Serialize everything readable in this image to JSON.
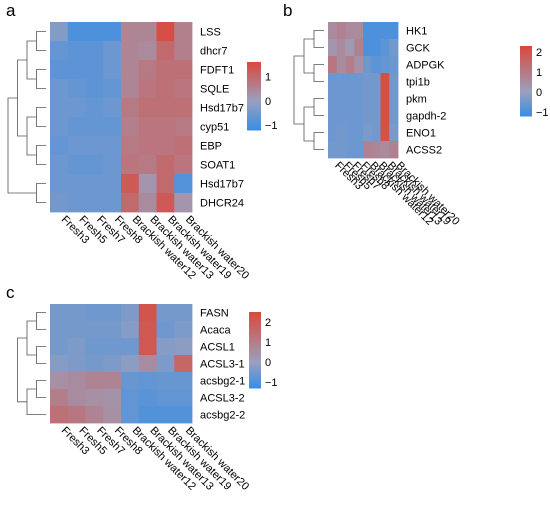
{
  "chart_data": [
    {
      "type": "heatmap",
      "panel_label": "a",
      "rows": [
        "LSS",
        "dhcr7",
        "FDFT1",
        "SQLE",
        "Hsd17b7",
        "cyp51",
        "EBP",
        "SOAT1",
        "Hsd17b7",
        "DHCR24"
      ],
      "columns": [
        "Fresh3",
        "Fresh5",
        "Fresh7",
        "Fresh8",
        "Brackish water12",
        "Brackish water13",
        "Brackish water19",
        "Brackish water20"
      ],
      "values": [
        [
          -0.3,
          -1.0,
          -1.0,
          -1.0,
          0.5,
          0.5,
          1.5,
          0.6
        ],
        [
          -0.7,
          -0.8,
          -0.8,
          -0.6,
          0.5,
          0.4,
          1.0,
          0.6
        ],
        [
          -0.8,
          -0.8,
          -0.8,
          -0.6,
          0.5,
          0.7,
          0.9,
          0.9
        ],
        [
          -0.6,
          -0.7,
          -0.8,
          -0.7,
          0.5,
          0.8,
          0.9,
          0.8
        ],
        [
          -0.6,
          -0.6,
          -0.7,
          -0.6,
          0.7,
          0.9,
          0.9,
          0.9
        ],
        [
          -0.6,
          -0.7,
          -0.7,
          -0.7,
          0.6,
          0.8,
          0.8,
          0.7
        ],
        [
          -0.7,
          -0.6,
          -0.6,
          -0.6,
          0.7,
          0.8,
          0.8,
          0.9
        ],
        [
          -0.6,
          -0.7,
          -0.7,
          -0.6,
          0.8,
          0.7,
          1.0,
          0.8
        ],
        [
          -0.6,
          -0.6,
          -0.6,
          -0.6,
          1.3,
          0.2,
          1.0,
          -0.9
        ],
        [
          -0.5,
          -0.6,
          -0.6,
          -0.6,
          1.0,
          0.4,
          1.3,
          0.2
        ]
      ],
      "colorbar": {
        "ticks": [
          1,
          0,
          -1
        ],
        "min": -1.2,
        "max": 1.6
      }
    },
    {
      "type": "heatmap",
      "panel_label": "b",
      "rows": [
        "HK1",
        "GCK",
        "ADPGK",
        "tpi1b",
        "pkm",
        "gapdh-2",
        "ENO1",
        "ACSS2"
      ],
      "columns": [
        "Fresh3",
        "Fresh5",
        "Fresh7",
        "Fresh8",
        "Brackish water12",
        "Brackish water13",
        "Brackish water19",
        "Brackish water20"
      ],
      "values": [
        [
          0.6,
          0.8,
          0.6,
          0.6,
          -1.0,
          -1.0,
          -1.0,
          -1.0
        ],
        [
          0.3,
          0.6,
          0.2,
          0.8,
          -1.0,
          -1.0,
          -0.8,
          -0.5
        ],
        [
          1.1,
          0.5,
          0.9,
          0.4,
          -0.6,
          -0.8,
          -0.7,
          -0.6
        ],
        [
          -0.6,
          -0.6,
          -0.6,
          -0.6,
          -0.5,
          -0.5,
          2.2,
          -0.5
        ],
        [
          -0.6,
          -0.6,
          -0.6,
          -0.6,
          -0.5,
          -0.5,
          2.2,
          -0.5
        ],
        [
          -0.6,
          -0.6,
          -0.6,
          -0.6,
          -0.5,
          -0.5,
          2.2,
          -0.5
        ],
        [
          -0.6,
          -0.5,
          -0.6,
          -0.6,
          -0.4,
          -0.5,
          2.1,
          -0.4
        ],
        [
          -0.5,
          -0.5,
          -0.6,
          -0.6,
          0.8,
          0.7,
          0.6,
          0.8
        ]
      ],
      "colorbar": {
        "ticks": [
          2,
          1,
          0,
          -1
        ],
        "min": -1.2,
        "max": 2.3
      }
    },
    {
      "type": "heatmap",
      "panel_label": "c",
      "rows": [
        "FASN",
        "Acaca",
        "ACSL1",
        "ACSL3-1",
        "acsbg2-1",
        "ACSL3-2",
        "acsbg2-2"
      ],
      "columns": [
        "Fresh3",
        "Fresh5",
        "Fresh7",
        "Fresh8",
        "Brackish water12",
        "Brackish water13",
        "Brackish water19",
        "Brackish water20"
      ],
      "values": [
        [
          -0.5,
          -0.5,
          -0.6,
          -0.6,
          -0.4,
          2.2,
          -0.5,
          -0.5
        ],
        [
          -0.5,
          -0.5,
          -0.5,
          -0.5,
          -0.3,
          2.1,
          -0.6,
          -0.4
        ],
        [
          -0.5,
          -0.4,
          -0.6,
          -0.6,
          -0.6,
          2.1,
          -0.3,
          -0.2
        ],
        [
          -0.3,
          -0.4,
          -0.5,
          -0.4,
          -0.2,
          0.6,
          -0.4,
          1.7
        ],
        [
          0.5,
          0.6,
          0.8,
          0.8,
          -0.7,
          -0.8,
          -0.7,
          -0.7
        ],
        [
          1.0,
          0.6,
          0.5,
          0.4,
          -0.8,
          -0.9,
          -0.8,
          -0.8
        ],
        [
          1.4,
          1.2,
          0.8,
          0.5,
          -0.8,
          -1.0,
          -1.0,
          -1.0
        ]
      ],
      "colorbar": {
        "ticks": [
          2,
          1,
          0,
          -1
        ],
        "min": -1.3,
        "max": 2.5
      }
    }
  ],
  "colors": {
    "low": "#3d8ee2",
    "mid": "#9aa0bd",
    "high": "#d94a3e"
  }
}
